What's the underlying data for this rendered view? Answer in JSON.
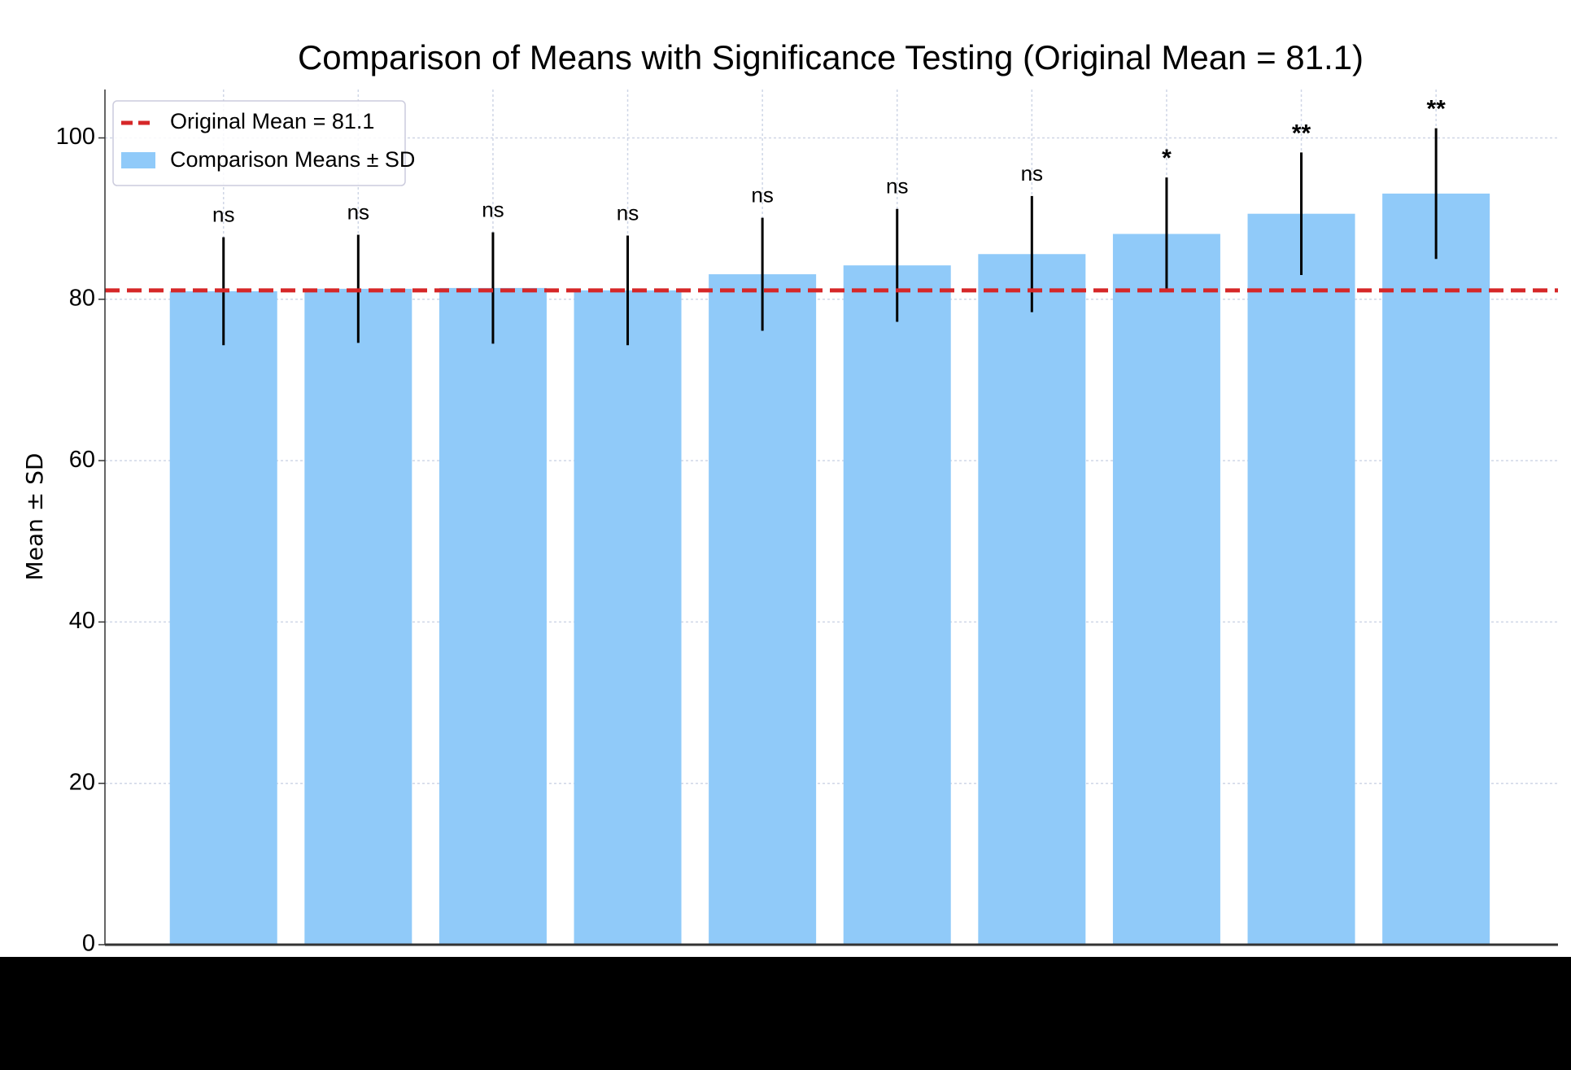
{
  "chart_data": {
    "type": "bar",
    "title": "Comparison of Means with Significance Testing (Original Mean = 81.1)",
    "ylabel": "Mean ± SD",
    "categories": [
      null,
      null,
      null,
      null,
      null,
      null,
      null,
      null,
      null,
      null
    ],
    "series": [
      {
        "name": "Comparison Means ± SD",
        "color": "#90caf9",
        "values": [
          81.0,
          81.3,
          81.4,
          81.1,
          83.1,
          84.2,
          85.6,
          88.1,
          90.6,
          93.1
        ],
        "errors": [
          6.7,
          6.7,
          6.9,
          6.8,
          7.0,
          7.0,
          7.2,
          7.0,
          7.6,
          8.1
        ]
      }
    ],
    "annotations": [
      "ns",
      "ns",
      "ns",
      "ns",
      "ns",
      "ns",
      "ns",
      "*",
      "**",
      "**"
    ],
    "reference_line": {
      "value": 81.1,
      "label": "Original Mean = 81.1",
      "color": "#d62728"
    },
    "ylim": [
      0,
      106
    ],
    "yticks": [
      0,
      20,
      40,
      60,
      80,
      100
    ],
    "grid": true,
    "legend": "upper left"
  }
}
